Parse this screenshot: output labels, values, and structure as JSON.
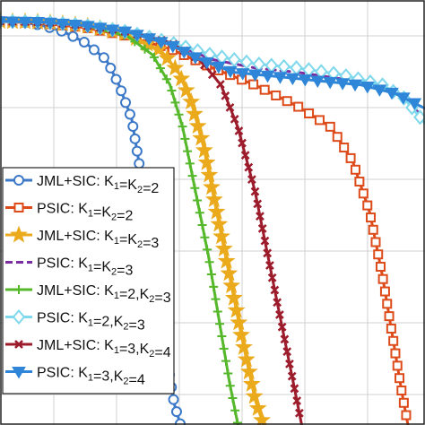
{
  "chart_data": {
    "type": "line",
    "title": "",
    "xlabel": "",
    "ylabel": "",
    "grid": true,
    "legend_placement": "bottom-left",
    "xlim": [
      0,
      10
    ],
    "ylim": [
      0,
      1
    ],
    "series": [
      {
        "name": "JML+SIC: K1=K2=2",
        "legend": {
          "pre": "JML+SIC: K",
          "s1": "1",
          "mid": "=K",
          "s2": "2",
          "post": "=2"
        },
        "color": "#3b78c8",
        "marker": "circle",
        "dashed": false,
        "points": [
          [
            0,
            0.95
          ],
          [
            0.5,
            0.948
          ],
          [
            1,
            0.94
          ],
          [
            1.5,
            0.925
          ],
          [
            2,
            0.9
          ],
          [
            2.5,
            0.86
          ],
          [
            2.8,
            0.8
          ],
          [
            3.1,
            0.72
          ],
          [
            3.3,
            0.6
          ],
          [
            3.5,
            0.45
          ],
          [
            3.7,
            0.3
          ],
          [
            3.9,
            0.17
          ],
          [
            4.1,
            0.05
          ],
          [
            4.25,
            0
          ]
        ]
      },
      {
        "name": "PSIC: K1=K2=2",
        "legend": {
          "pre": "PSIC: K",
          "s1": "1",
          "mid": "=K",
          "s2": "2",
          "post": "=2"
        },
        "color": "#dd4b1a",
        "marker": "square",
        "dashed": false,
        "points": [
          [
            0,
            0.95
          ],
          [
            1,
            0.945
          ],
          [
            2,
            0.935
          ],
          [
            3,
            0.915
          ],
          [
            4,
            0.885
          ],
          [
            5,
            0.84
          ],
          [
            6,
            0.8
          ],
          [
            7,
            0.75
          ],
          [
            7.8,
            0.7
          ],
          [
            8.3,
            0.62
          ],
          [
            8.7,
            0.5
          ],
          [
            9,
            0.35
          ],
          [
            9.25,
            0.2
          ],
          [
            9.45,
            0.08
          ],
          [
            9.6,
            0
          ]
        ]
      },
      {
        "name": "JML+SIC: K1=K2=3",
        "legend": {
          "pre": "JML+SIC: K",
          "s1": "1",
          "mid": "=K",
          "s2": "2",
          "post": "=3"
        },
        "color": "#eaaa1c",
        "marker": "star",
        "dashed": false,
        "points": [
          [
            0,
            0.95
          ],
          [
            1,
            0.948
          ],
          [
            2,
            0.94
          ],
          [
            3,
            0.92
          ],
          [
            3.8,
            0.88
          ],
          [
            4.2,
            0.83
          ],
          [
            4.5,
            0.76
          ],
          [
            4.8,
            0.65
          ],
          [
            5.1,
            0.5
          ],
          [
            5.4,
            0.35
          ],
          [
            5.7,
            0.2
          ],
          [
            6,
            0.06
          ],
          [
            6.2,
            0
          ]
        ]
      },
      {
        "name": "PSIC: K1=K2=3",
        "legend": {
          "pre": "PSIC: K",
          "s1": "1",
          "mid": "=K",
          "s2": "2",
          "post": "=3"
        },
        "color": "#7a2ea0",
        "marker": "none",
        "dashed": true,
        "points": [
          [
            0,
            0.95
          ],
          [
            1,
            0.948
          ],
          [
            2,
            0.94
          ],
          [
            3,
            0.925
          ],
          [
            4,
            0.9
          ],
          [
            5,
            0.86
          ],
          [
            6,
            0.84
          ],
          [
            7,
            0.83
          ],
          [
            8,
            0.815
          ],
          [
            9,
            0.795
          ],
          [
            9.5,
            0.77
          ],
          [
            10,
            0.72
          ]
        ]
      },
      {
        "name": "JML+SIC: K1=2,K2=3",
        "legend": {
          "pre": "JML+SIC: K",
          "s1": "1",
          "mid": "=2,K",
          "s2": "2",
          "post": "=3"
        },
        "color": "#55b82a",
        "marker": "plus",
        "dashed": false,
        "points": [
          [
            0,
            0.95
          ],
          [
            1,
            0.948
          ],
          [
            2,
            0.94
          ],
          [
            3,
            0.915
          ],
          [
            3.6,
            0.87
          ],
          [
            4,
            0.8
          ],
          [
            4.3,
            0.7
          ],
          [
            4.6,
            0.55
          ],
          [
            4.9,
            0.4
          ],
          [
            5.15,
            0.25
          ],
          [
            5.4,
            0.1
          ],
          [
            5.6,
            0
          ]
        ]
      },
      {
        "name": "PSIC: K1=2,K2=3",
        "legend": {
          "pre": "PSIC: K",
          "s1": "1",
          "mid": "=2,K",
          "s2": "2",
          "post": "=3"
        },
        "color": "#7fd8ec",
        "marker": "diamond",
        "dashed": false,
        "points": [
          [
            0,
            0.95
          ],
          [
            1,
            0.948
          ],
          [
            2,
            0.94
          ],
          [
            3,
            0.925
          ],
          [
            4,
            0.9
          ],
          [
            5,
            0.87
          ],
          [
            6,
            0.85
          ],
          [
            7,
            0.84
          ],
          [
            8,
            0.825
          ],
          [
            9,
            0.8
          ],
          [
            9.5,
            0.77
          ],
          [
            10,
            0.71
          ]
        ]
      },
      {
        "name": "JML+SIC: K1=3,K2=4",
        "legend": {
          "pre": "JML+SIC: K",
          "s1": "1",
          "mid": "=3,K",
          "s2": "2",
          "post": "=4"
        },
        "color": "#9c1c2c",
        "marker": "cross",
        "dashed": false,
        "points": [
          [
            0,
            0.95
          ],
          [
            1,
            0.948
          ],
          [
            2,
            0.94
          ],
          [
            3,
            0.925
          ],
          [
            4,
            0.9
          ],
          [
            4.7,
            0.86
          ],
          [
            5.2,
            0.8
          ],
          [
            5.6,
            0.7
          ],
          [
            6,
            0.55
          ],
          [
            6.3,
            0.4
          ],
          [
            6.6,
            0.25
          ],
          [
            6.9,
            0.1
          ],
          [
            7.1,
            0
          ]
        ]
      },
      {
        "name": "PSIC: K1=3,K2=4",
        "legend": {
          "pre": "PSIC: K",
          "s1": "1",
          "mid": "=3,K",
          "s2": "2",
          "post": "=4"
        },
        "color": "#2f86d8",
        "marker": "triangle-down",
        "dashed": false,
        "points": [
          [
            0,
            0.95
          ],
          [
            1,
            0.948
          ],
          [
            2,
            0.94
          ],
          [
            3,
            0.925
          ],
          [
            4,
            0.895
          ],
          [
            4.7,
            0.86
          ],
          [
            5.5,
            0.83
          ],
          [
            6.5,
            0.82
          ],
          [
            7.5,
            0.81
          ],
          [
            8.5,
            0.8
          ],
          [
            9.3,
            0.78
          ],
          [
            10,
            0.745
          ]
        ]
      }
    ]
  }
}
